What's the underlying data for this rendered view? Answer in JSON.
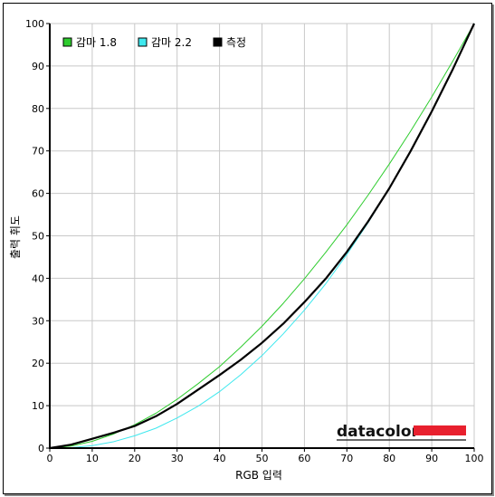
{
  "chart_data": {
    "type": "line",
    "xlabel": "RGB 입력",
    "ylabel": "출력 휘도",
    "xlim": [
      0,
      100
    ],
    "ylim": [
      0,
      100
    ],
    "x_ticks": [
      0,
      10,
      20,
      30,
      40,
      50,
      60,
      70,
      80,
      90,
      100
    ],
    "y_ticks": [
      0,
      10,
      20,
      30,
      40,
      50,
      60,
      70,
      80,
      90,
      100
    ],
    "grid": true,
    "legend_position": "top-left",
    "x": [
      0,
      5,
      10,
      15,
      20,
      25,
      30,
      35,
      40,
      45,
      50,
      55,
      60,
      65,
      70,
      75,
      80,
      85,
      90,
      95,
      100
    ],
    "series": [
      {
        "name": "감마 1.8",
        "color": "#2ecc2e",
        "width": 1,
        "values": [
          0.0,
          0.5,
          1.6,
          3.3,
          5.5,
          8.2,
          11.5,
          15.2,
          19.2,
          23.8,
          28.7,
          34.1,
          39.9,
          46.1,
          52.6,
          59.6,
          66.9,
          74.6,
          82.7,
          91.2,
          100.0
        ]
      },
      {
        "name": "감마 2.2",
        "color": "#3ee8ee",
        "width": 1,
        "values": [
          0.0,
          0.1,
          0.6,
          1.5,
          2.9,
          4.7,
          7.1,
          9.9,
          13.3,
          17.3,
          21.8,
          26.9,
          32.5,
          38.7,
          45.6,
          53.1,
          61.2,
          69.9,
          79.3,
          89.3,
          100.0
        ]
      },
      {
        "name": "측정",
        "color": "#000000",
        "width": 2.2,
        "values": [
          0.0,
          0.8,
          2.2,
          3.6,
          5.2,
          7.5,
          10.4,
          13.8,
          17.2,
          20.8,
          24.8,
          29.3,
          34.4,
          39.9,
          46.2,
          53.4,
          61.2,
          69.9,
          79.3,
          89.3,
          100.0
        ]
      }
    ]
  },
  "watermark": {
    "text": "datacolor",
    "bar_color": "#e8202e"
  }
}
